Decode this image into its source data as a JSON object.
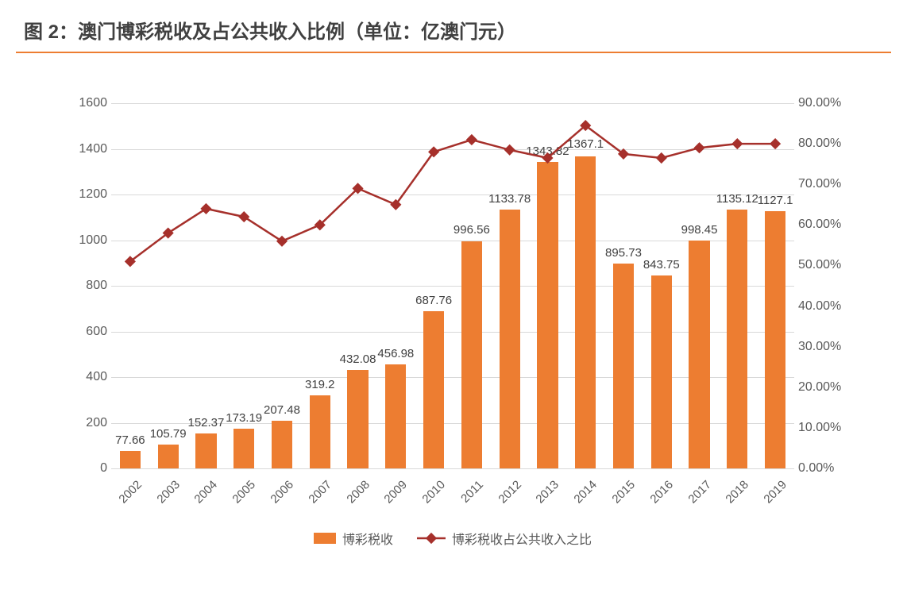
{
  "title": "图 2：澳门博彩税收及占公共收入比例（单位：亿澳门元）",
  "chart": {
    "type": "bar+line",
    "background_color": "#ffffff",
    "grid_color": "#d9d9d9",
    "title_divider_color": "#ed7d31",
    "axis_text_color": "#595959",
    "label_text_color": "#404040",
    "label_fontsize": 15,
    "axis_fontsize": 16,
    "categories": [
      "2002",
      "2003",
      "2004",
      "2005",
      "2006",
      "2007",
      "2008",
      "2009",
      "2010",
      "2011",
      "2012",
      "2013",
      "2014",
      "2015",
      "2016",
      "2017",
      "2018",
      "2019"
    ],
    "bar": {
      "series_name": "博彩税收",
      "values": [
        77.66,
        105.79,
        152.37,
        173.19,
        207.48,
        319.2,
        432.08,
        456.98,
        687.76,
        996.56,
        1133.78,
        1343.82,
        1367.1,
        895.73,
        843.75,
        998.45,
        1135.12,
        1127.1
      ],
      "color": "#ed7d31",
      "bar_width_ratio": 0.55,
      "ylim": [
        0,
        1600
      ],
      "ytick_step": 200
    },
    "line": {
      "series_name": "博彩税收占公共收入之比",
      "values_pct": [
        51,
        58,
        64,
        62,
        56,
        60,
        69,
        65,
        78,
        81,
        78.5,
        76.5,
        84.5,
        77.5,
        76.5,
        79,
        80,
        80
      ],
      "color": "#a6302b",
      "line_width": 2.5,
      "marker": "diamond",
      "marker_size": 10,
      "ylim_pct": [
        0,
        90
      ],
      "ytick_step_pct": 10
    },
    "x_label_rotation_deg": -45,
    "legend_position": "bottom"
  },
  "legend": {
    "bar_label": "博彩税收",
    "line_label": "博彩税收占公共收入之比"
  }
}
